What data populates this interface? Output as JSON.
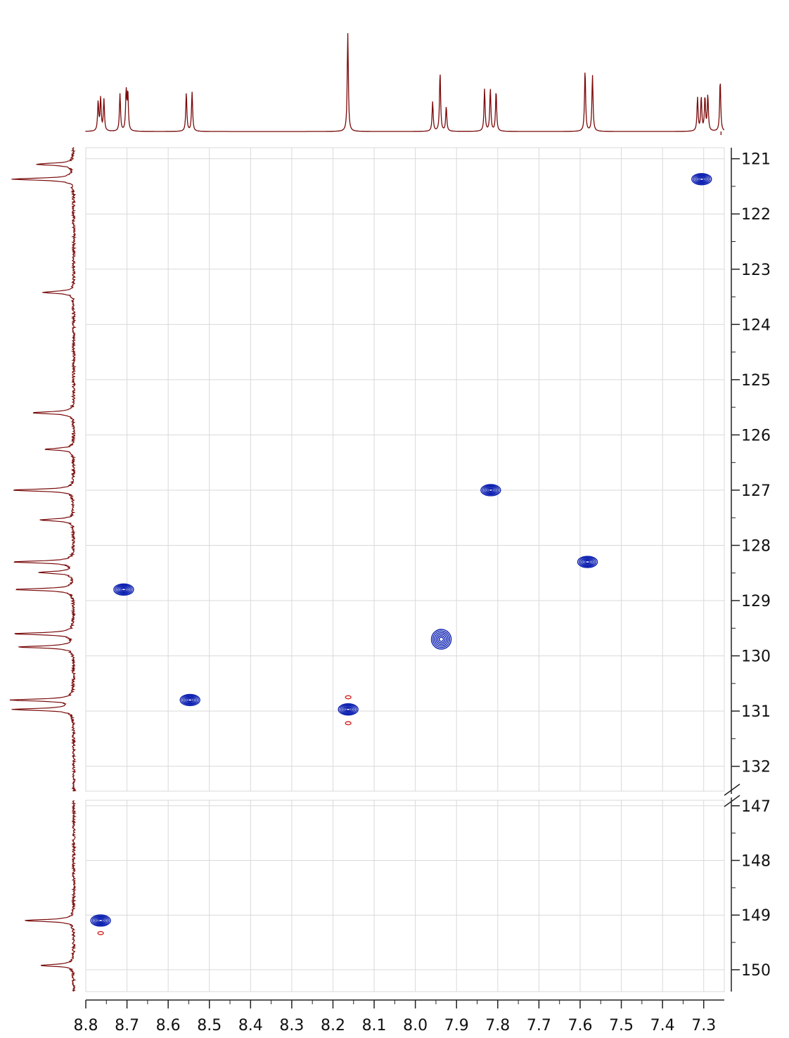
{
  "chart_data": {
    "type": "scatter",
    "title": "",
    "xlabel": "",
    "ylabel": "",
    "x_reversed": true,
    "y_reversed": true,
    "xlim": [
      8.8,
      7.25
    ],
    "ylim_upper": [
      120.8,
      132.45
    ],
    "ylim_lower": [
      146.9,
      150.4
    ],
    "axis_break": true,
    "grid": true,
    "x_ticks": [
      "8.8",
      "8.7",
      "8.6",
      "8.5",
      "8.4",
      "8.3",
      "8.2",
      "8.1",
      "8.0",
      "7.9",
      "7.8",
      "7.7",
      "7.6",
      "7.5",
      "7.4",
      "7.3"
    ],
    "y_ticks_upper": [
      "121",
      "122",
      "123",
      "124",
      "125",
      "126",
      "127",
      "128",
      "129",
      "130",
      "131",
      "132"
    ],
    "y_ticks_lower": [
      "147",
      "148",
      "149",
      "150"
    ],
    "cross_peaks": [
      {
        "x": 7.305,
        "y": 121.37
      },
      {
        "x": 7.817,
        "y": 127.0
      },
      {
        "x": 7.582,
        "y": 128.3
      },
      {
        "x": 8.708,
        "y": 128.8
      },
      {
        "x": 7.937,
        "y": 129.7
      },
      {
        "x": 8.547,
        "y": 130.8
      },
      {
        "x": 8.163,
        "y": 130.97
      },
      {
        "x": 8.764,
        "y": 149.1
      }
    ],
    "negative_peaks": [
      {
        "x": 8.163,
        "y": 130.75
      },
      {
        "x": 8.163,
        "y": 131.22
      },
      {
        "x": 8.764,
        "y": 149.33
      }
    ],
    "proton_projection": [
      {
        "x": 8.77,
        "h": 0.3
      },
      {
        "x": 8.764,
        "h": 0.33
      },
      {
        "x": 8.756,
        "h": 0.32
      },
      {
        "x": 8.717,
        "h": 0.38
      },
      {
        "x": 8.702,
        "h": 0.4
      },
      {
        "x": 8.698,
        "h": 0.38
      },
      {
        "x": 8.556,
        "h": 0.39
      },
      {
        "x": 8.542,
        "h": 0.4
      },
      {
        "x": 8.164,
        "h": 1.0
      },
      {
        "x": 7.958,
        "h": 0.3
      },
      {
        "x": 7.94,
        "h": 0.6
      },
      {
        "x": 7.925,
        "h": 0.25
      },
      {
        "x": 7.832,
        "h": 0.43
      },
      {
        "x": 7.818,
        "h": 0.43
      },
      {
        "x": 7.804,
        "h": 0.41
      },
      {
        "x": 7.588,
        "h": 0.62
      },
      {
        "x": 7.57,
        "h": 0.57
      },
      {
        "x": 7.315,
        "h": 0.34
      },
      {
        "x": 7.306,
        "h": 0.34
      },
      {
        "x": 7.297,
        "h": 0.34
      },
      {
        "x": 7.29,
        "h": 0.36
      },
      {
        "x": 7.26,
        "h": 0.52
      }
    ],
    "carbon_projection": [
      {
        "y": 121.1,
        "h": 0.61
      },
      {
        "y": 121.37,
        "h": 1.0
      },
      {
        "y": 123.42,
        "h": 0.52
      },
      {
        "y": 125.6,
        "h": 0.67
      },
      {
        "y": 126.26,
        "h": 0.46
      },
      {
        "y": 127.0,
        "h": 1.0
      },
      {
        "y": 127.54,
        "h": 0.56
      },
      {
        "y": 128.3,
        "h": 0.97
      },
      {
        "y": 128.49,
        "h": 0.56
      },
      {
        "y": 128.8,
        "h": 0.95
      },
      {
        "y": 129.6,
        "h": 0.97
      },
      {
        "y": 129.84,
        "h": 0.88
      },
      {
        "y": 130.8,
        "h": 1.0
      },
      {
        "y": 130.97,
        "h": 1.0
      },
      {
        "y": 149.1,
        "h": 0.8
      },
      {
        "y": 149.92,
        "h": 0.55
      }
    ],
    "colors": {
      "positive_contour": "#0b1fb0",
      "negative_contour": "#d01818",
      "projection": "#7a0a0a",
      "grid": "#d9d9d9",
      "axis": "#222222"
    }
  }
}
